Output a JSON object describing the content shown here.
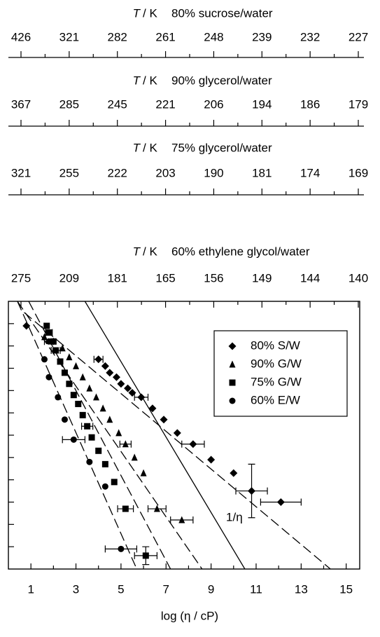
{
  "chart_data": {
    "type": "scatter",
    "xlabel": "log (η / cP)",
    "xlim": [
      0,
      15.6
    ],
    "xticks": [
      1,
      3,
      5,
      7,
      9,
      11,
      13,
      15
    ],
    "ylim": [
      0,
      12
    ],
    "yticks": [
      1,
      2,
      3,
      4,
      5,
      6,
      7,
      8,
      9,
      10,
      11
    ],
    "legend": "upper right",
    "series": [
      {
        "name": "80% S/W",
        "marker": "diamond",
        "color": "#000000",
        "x": [
          0.8,
          4.0,
          4.3,
          4.5,
          4.8,
          5.0,
          5.3,
          5.5,
          5.9,
          6.4,
          6.9,
          7.5,
          8.2,
          9.0,
          10.0,
          10.8,
          12.1
        ],
        "values": [
          10.9,
          9.4,
          9.1,
          8.8,
          8.6,
          8.3,
          8.1,
          7.9,
          7.7,
          7.2,
          6.7,
          6.1,
          5.6,
          4.9,
          4.3,
          3.5,
          3.0
        ],
        "xerr": [
          null,
          0.2,
          null,
          null,
          null,
          null,
          null,
          null,
          0.3,
          null,
          null,
          null,
          0.5,
          null,
          null,
          0.7,
          0.9
        ],
        "yerr": [
          null,
          null,
          null,
          null,
          null,
          null,
          null,
          null,
          null,
          null,
          null,
          null,
          null,
          null,
          null,
          1.2,
          null
        ],
        "fit": {
          "x": [
            0.7,
            14.3
          ],
          "values": [
            11.5,
            0
          ]
        }
      },
      {
        "name": "90% G/W",
        "marker": "triangle",
        "color": "#000000",
        "x": [
          1.6,
          2.4,
          2.7,
          3.0,
          3.3,
          3.6,
          3.9,
          4.2,
          4.5,
          4.9,
          5.2,
          5.6,
          6.0,
          6.6,
          7.7
        ],
        "values": [
          10.4,
          9.9,
          9.5,
          9.1,
          8.6,
          8.1,
          7.7,
          7.2,
          6.7,
          6.1,
          5.6,
          5.0,
          4.3,
          2.7,
          2.2
        ],
        "xerr": [
          null,
          null,
          null,
          null,
          null,
          null,
          null,
          null,
          null,
          null,
          0.25,
          null,
          null,
          0.4,
          0.5
        ],
        "yerr": [
          null,
          null,
          null,
          null,
          null,
          null,
          null,
          null,
          null,
          null,
          null,
          null,
          null,
          null,
          null
        ],
        "fit": {
          "x": [
            0.4,
            8.6
          ],
          "values": [
            12,
            0
          ]
        }
      },
      {
        "name": "75% G/W",
        "marker": "square",
        "color": "#000000",
        "x": [
          1.7,
          1.8,
          2.0,
          2.1,
          2.3,
          2.5,
          2.7,
          2.9,
          3.1,
          3.3,
          3.5,
          3.7,
          4.0,
          4.3,
          4.7,
          5.2,
          6.1
        ],
        "values": [
          10.9,
          10.6,
          10.2,
          9.8,
          9.3,
          8.8,
          8.3,
          7.8,
          7.4,
          6.9,
          6.4,
          5.9,
          5.3,
          4.7,
          3.9,
          2.7,
          0.6
        ],
        "xerr": [
          null,
          0.15,
          null,
          0.2,
          null,
          null,
          null,
          null,
          null,
          null,
          0.25,
          null,
          null,
          null,
          null,
          0.35,
          0.5
        ],
        "yerr": [
          null,
          null,
          null,
          null,
          null,
          null,
          null,
          null,
          null,
          null,
          null,
          null,
          null,
          null,
          null,
          null,
          0.4
        ],
        "fit": {
          "x": [
            0.9,
            7.2
          ],
          "values": [
            12,
            0
          ]
        }
      },
      {
        "name": "60% E/W",
        "marker": "circle",
        "color": "#000000",
        "x": [
          1.8,
          1.6,
          1.8,
          2.2,
          2.5,
          2.9,
          3.6,
          4.3,
          5.0
        ],
        "values": [
          10.2,
          9.4,
          8.6,
          7.7,
          6.7,
          5.8,
          4.8,
          3.7,
          0.9
        ],
        "xerr": [
          0.2,
          null,
          null,
          null,
          null,
          0.5,
          null,
          null,
          0.7
        ],
        "yerr": [
          null,
          null,
          null,
          null,
          null,
          null,
          null,
          null,
          null
        ],
        "fit": {
          "x": [
            0.4,
            5.7
          ],
          "values": [
            12,
            0
          ]
        }
      }
    ],
    "reference_line": {
      "label": "1/η",
      "x": [
        3.4,
        10.5
      ],
      "values": [
        12,
        0
      ]
    },
    "temperature_axes": [
      {
        "symbol": "T",
        "unit": "/ K",
        "name": "80% sucrose/water",
        "ticks": [
          426,
          321,
          282,
          261,
          248,
          239,
          232,
          227
        ]
      },
      {
        "symbol": "T",
        "unit": "/ K",
        "name": "90% glycerol/water",
        "ticks": [
          367,
          285,
          245,
          221,
          206,
          194,
          186,
          179
        ]
      },
      {
        "symbol": "T",
        "unit": "/ K",
        "name": "75% glycerol/water",
        "ticks": [
          321,
          255,
          222,
          203,
          190,
          181,
          174,
          169
        ]
      },
      {
        "symbol": "T",
        "unit": "/ K",
        "name": "60% ethylene glycol/water",
        "ticks": [
          275,
          209,
          181,
          165,
          156,
          149,
          144,
          140
        ]
      }
    ]
  }
}
